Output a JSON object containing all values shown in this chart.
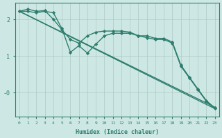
{
  "background_color": "#cde8e4",
  "grid_color": "#b0c8c4",
  "line_color": "#2e7d6e",
  "xlabel": "Humidex (Indice chaleur)",
  "xlim": [
    -0.5,
    23.5
  ],
  "ylim": [
    -0.65,
    2.45
  ],
  "yticks": [
    2,
    1,
    0
  ],
  "ytick_labels": [
    "2",
    "1",
    "-0"
  ],
  "xticks": [
    0,
    1,
    2,
    3,
    4,
    5,
    6,
    7,
    8,
    9,
    10,
    11,
    12,
    13,
    14,
    15,
    16,
    17,
    18,
    19,
    20,
    21,
    22,
    23
  ],
  "series": [
    {
      "x": [
        0,
        1,
        2,
        3,
        4,
        5,
        6,
        7,
        8,
        9,
        10,
        11,
        12,
        13,
        14,
        15,
        16,
        17,
        18,
        19,
        20,
        21,
        22,
        23
      ],
      "y": [
        2.22,
        2.28,
        2.22,
        2.24,
        2.0,
        1.72,
        1.45,
        1.35,
        1.55,
        1.65,
        1.68,
        1.68,
        1.68,
        1.65,
        1.55,
        1.55,
        1.48,
        1.48,
        1.38,
        0.75,
        0.42,
        0.1,
        -0.22,
        -0.42
      ],
      "marker": "D",
      "markersize": 2.2,
      "linewidth": 1.0
    },
    {
      "x": [
        0,
        1,
        2,
        3,
        4,
        5,
        6,
        7,
        8,
        9,
        10,
        11,
        12,
        13,
        14,
        15,
        16,
        17,
        18,
        19,
        20,
        21,
        22,
        23
      ],
      "y": [
        2.22,
        2.22,
        2.18,
        2.22,
        2.18,
        1.75,
        1.1,
        1.28,
        1.08,
        1.32,
        1.55,
        1.62,
        1.62,
        1.62,
        1.55,
        1.5,
        1.45,
        1.45,
        1.35,
        0.72,
        0.4,
        0.08,
        -0.24,
        -0.44
      ],
      "marker": "D",
      "markersize": 2.2,
      "linewidth": 1.0
    },
    {
      "x": [
        0,
        23
      ],
      "y": [
        2.22,
        -0.4
      ],
      "marker": null,
      "linewidth": 1.0
    },
    {
      "x": [
        0,
        23
      ],
      "y": [
        2.22,
        -0.44
      ],
      "marker": null,
      "linewidth": 1.0
    }
  ]
}
